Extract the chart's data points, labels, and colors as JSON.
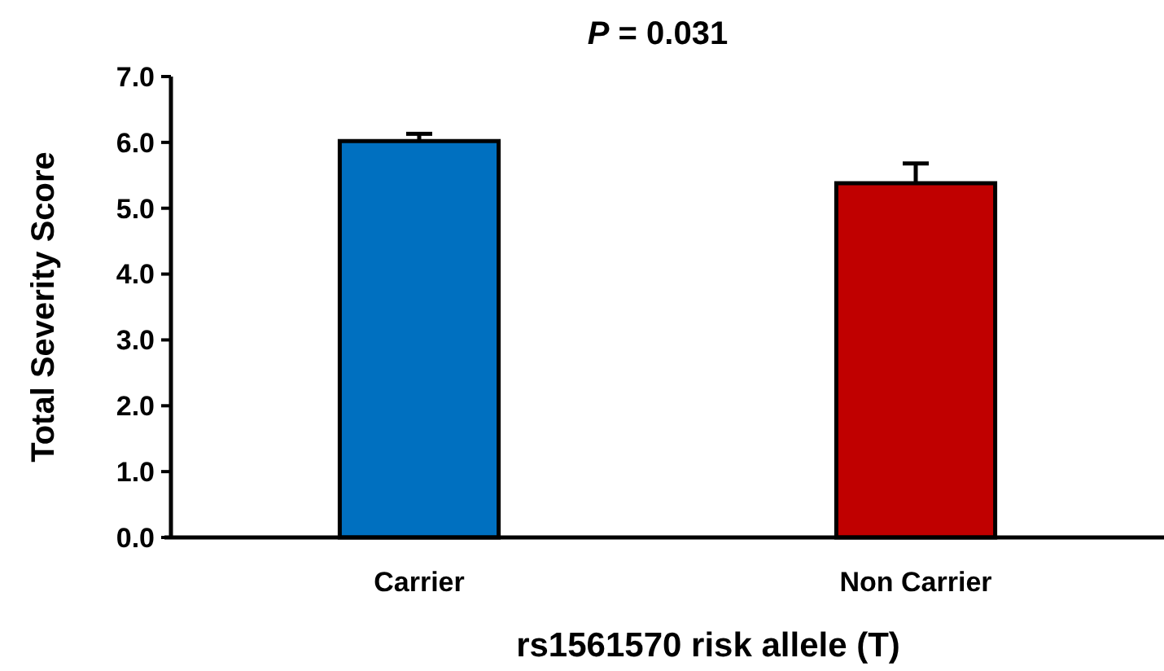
{
  "chart_data": {
    "type": "bar",
    "title": "P = 0.031",
    "xlabel": "rs1561570 risk allele (T)",
    "ylabel": "Total Severity Score",
    "categories": [
      "Carrier",
      "Non Carrier"
    ],
    "values": [
      6.02,
      5.38
    ],
    "colors": [
      "#0070c0",
      "#c00000"
    ],
    "errors": [
      [
        6.02,
        6.13
      ],
      [
        5.38,
        5.68
      ]
    ],
    "ylim": [
      0,
      7
    ],
    "yticks": [
      {
        "value": 0,
        "label": "0.0"
      },
      {
        "value": 1,
        "label": "1.0"
      },
      {
        "value": 2,
        "label": "2.0"
      },
      {
        "value": 3,
        "label": "3.0"
      },
      {
        "value": 4,
        "label": "4.0"
      },
      {
        "value": 5,
        "label": "5.0"
      },
      {
        "value": 6,
        "label": "6.0"
      },
      {
        "value": 7,
        "label": "7.0"
      }
    ],
    "grid": false
  }
}
